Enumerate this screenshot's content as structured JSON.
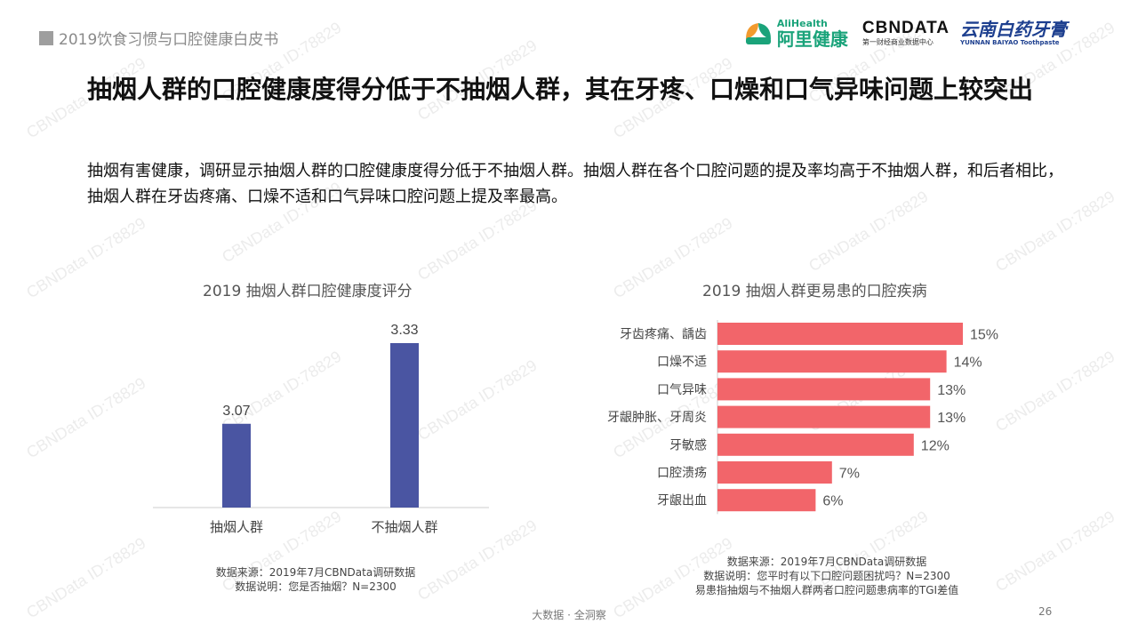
{
  "header": {
    "tag": "2019饮食习惯与口腔健康白皮书"
  },
  "logos": {
    "alihealth_en": "AliHealth",
    "alihealth_cn": "阿里健康",
    "cbn_main": "CBNDATA",
    "cbn_sub": "第一财经商业数据中心",
    "yunnan_cn": "云南白药牙膏",
    "yunnan_en": "YUNNAN BAIYAO Toothpaste"
  },
  "watermark": "CBNData ID:78829",
  "title": "抽烟人群的口腔健康度得分低于不抽烟人群，其在牙疼、口燥和口气异味问题上较突出",
  "subtitle": "抽烟有害健康，调研显示抽烟人群的口腔健康度得分低于不抽烟人群。抽烟人群在各个口腔问题的提及率均高于不抽烟人群，和后者相比，抽烟人群在牙齿疼痛、口燥不适和口气异味口腔问题上提及率最高。",
  "chart_data": [
    {
      "type": "bar",
      "title": "2019 抽烟人群口腔健康度评分",
      "categories": [
        "抽烟人群",
        "不抽烟人群"
      ],
      "values": [
        3.07,
        3.33
      ],
      "value_labels": [
        "3.07",
        "3.33"
      ],
      "color": "#4a55a2",
      "ylim": [
        2.8,
        3.4
      ],
      "grid": false
    },
    {
      "type": "bar",
      "orientation": "horizontal",
      "title": "2019 抽烟人群更易患的口腔疾病",
      "categories": [
        "牙齿疼痛、龋齿",
        "口燥不适",
        "口气异味",
        "牙龈肿胀、牙周炎",
        "牙敏感",
        "口腔溃疡",
        "牙龈出血"
      ],
      "values": [
        15,
        14,
        13,
        13,
        12,
        7,
        6
      ],
      "value_labels": [
        "15%",
        "14%",
        "13%",
        "13%",
        "12%",
        "7%",
        "6%"
      ],
      "unit": "%",
      "color": "#f2656a",
      "xlim": [
        0,
        15
      ],
      "grid": false
    }
  ],
  "notes": {
    "left_source": "数据来源：2019年7月CBNData调研数据",
    "left_desc": "数据说明：您是否抽烟？N=2300",
    "right_source": "数据来源：2019年7月CBNData调研数据",
    "right_desc": "数据说明：您平时有以下口腔问题困扰吗？N=2300",
    "right_tgi": "易患指抽烟与不抽烟人群两者口腔问题患病率的TGI差值"
  },
  "footer": {
    "text": "大数据 · 全洞察",
    "page": "26"
  }
}
